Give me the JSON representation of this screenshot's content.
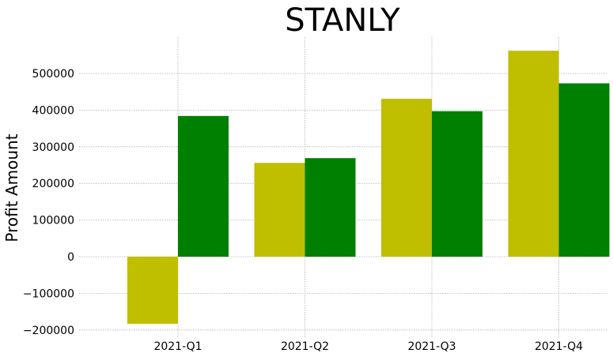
{
  "chart_data": {
    "type": "bar",
    "title": "STANLY",
    "xlabel": "",
    "ylabel": "Profit Amount",
    "categories": [
      "2021-Q1",
      "2021-Q2",
      "2021-Q3",
      "2021-Q4"
    ],
    "series": [
      {
        "color": "#bfbf00",
        "values": [
          -183000,
          256000,
          431000,
          562000
        ]
      },
      {
        "color": "#008000",
        "values": [
          384000,
          269000,
          397000,
          473000
        ]
      }
    ],
    "ylim": [
      -220000,
      600000
    ],
    "yticks": [
      -200000,
      -100000,
      0,
      100000,
      200000,
      300000,
      400000,
      500000
    ],
    "ytick_labels": [
      "−200000",
      "−100000",
      "0",
      "100000",
      "200000",
      "300000",
      "400000",
      "500000"
    ],
    "grid": true,
    "legend": "none"
  }
}
